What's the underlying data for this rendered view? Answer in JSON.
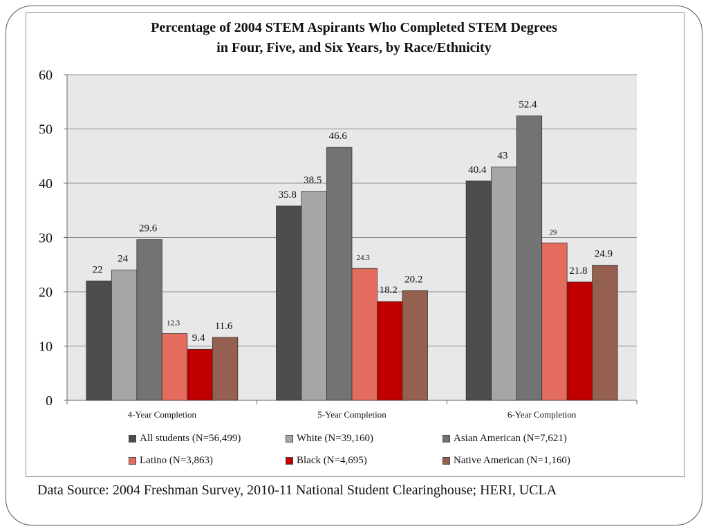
{
  "source_note": "Data Source: 2004 Freshman Survey, 2010-11 National Student Clearinghouse; HERI, UCLA",
  "chart_data": {
    "type": "bar",
    "title_line1": "Percentage of 2004 STEM Aspirants Who Completed STEM Degrees",
    "title_line2": "in Four, Five, and Six Years, by Race/Ethnicity",
    "xlabel": "",
    "ylabel": "",
    "ylim": [
      0,
      60
    ],
    "yticks": [
      "0",
      "10",
      "20",
      "30",
      "40",
      "50",
      "60"
    ],
    "grid": true,
    "legend_position": "bottom",
    "categories": [
      "4-Year Completion",
      "5-Year Completion",
      "6-Year Completion"
    ],
    "series": [
      {
        "name": "All students (N=56,499)",
        "color": "#4d4d4d",
        "values": [
          22,
          35.8,
          40.4
        ],
        "labels": [
          "22",
          "35.8",
          "40.4"
        ]
      },
      {
        "name": "White (N=39,160)",
        "color": "#a6a6a6",
        "values": [
          24,
          38.5,
          43
        ],
        "labels": [
          "24",
          "38.5",
          "43"
        ]
      },
      {
        "name": "Asian American (N=7,621)",
        "color": "#737373",
        "values": [
          29.6,
          46.6,
          52.4
        ],
        "labels": [
          "29.6",
          "46.6",
          "52.4"
        ]
      },
      {
        "name": "Latino (N=3,863)",
        "color": "#e46c5e",
        "values": [
          12.3,
          24.3,
          29
        ],
        "labels": [
          "12.3",
          "24.3",
          "29"
        ]
      },
      {
        "name": "Black (N=4,695)",
        "color": "#c00000",
        "values": [
          9.4,
          18.2,
          21.8
        ],
        "labels": [
          "9.4",
          "18.2",
          "21.8"
        ]
      },
      {
        "name": "Native American (N=1,160)",
        "color": "#956050",
        "values": [
          11.6,
          20.2,
          24.9
        ],
        "labels": [
          "11.6",
          "20.2",
          "24.9"
        ]
      }
    ]
  }
}
